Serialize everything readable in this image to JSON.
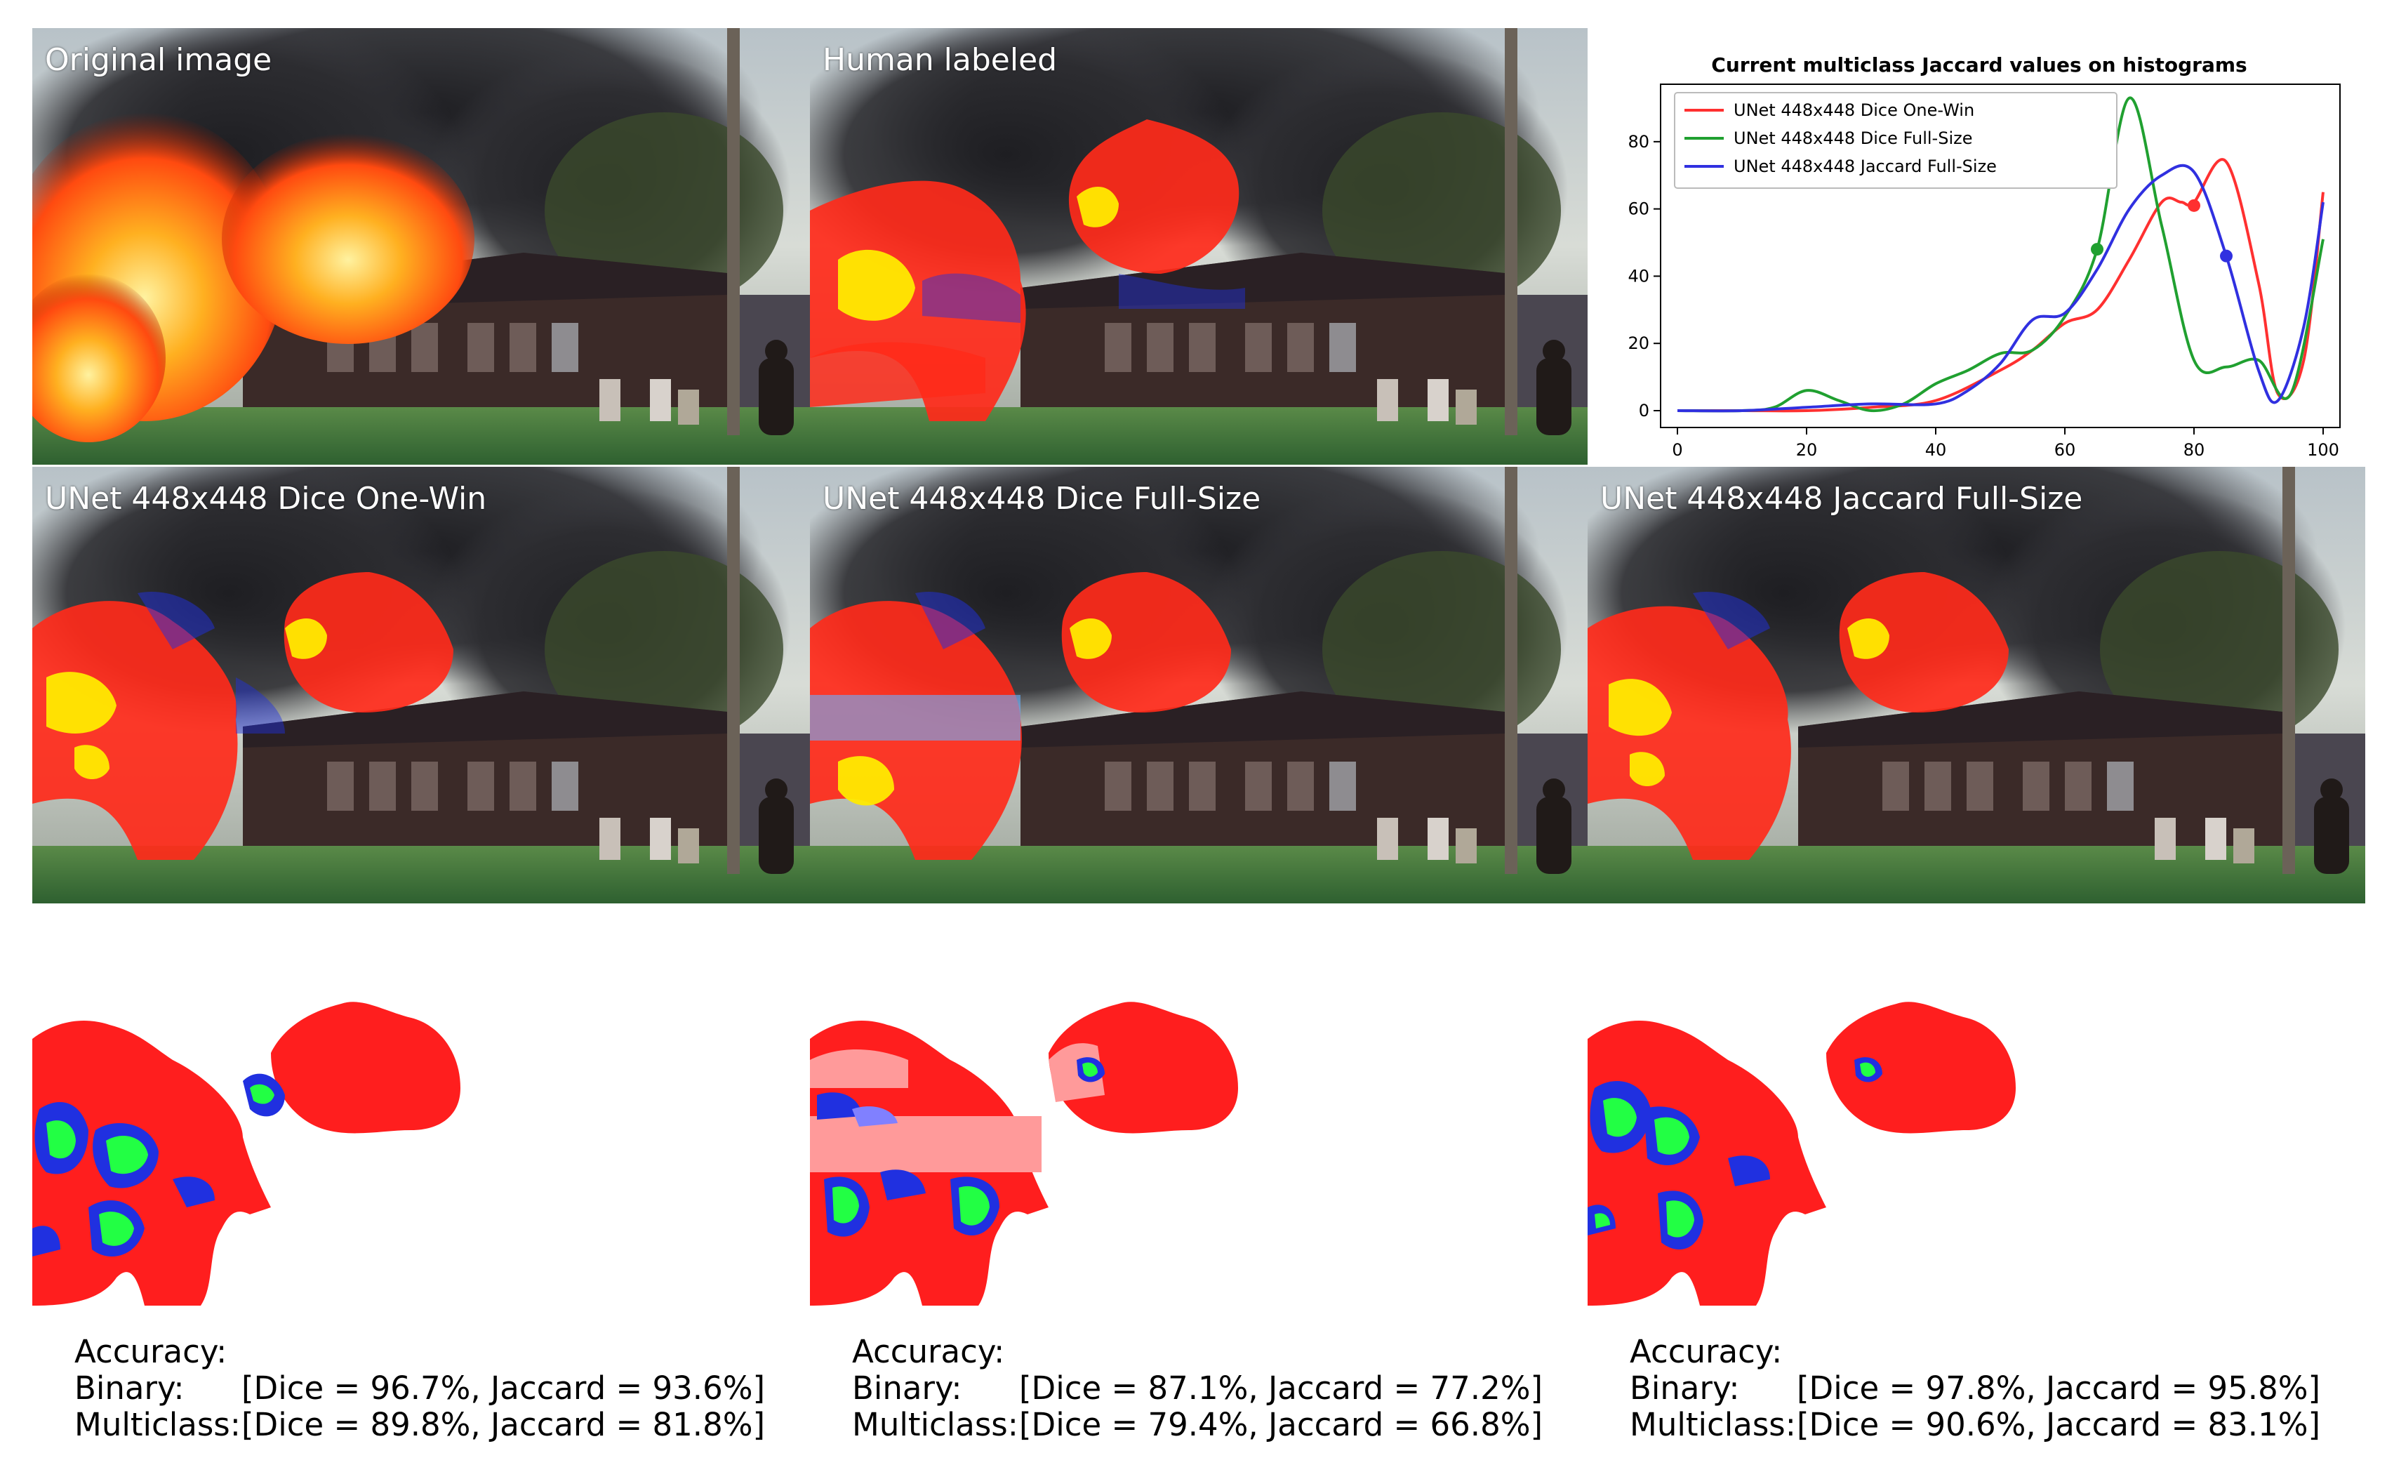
{
  "panels": [
    {
      "label": "Original image",
      "overlay": "none"
    },
    {
      "label": "Human labeled",
      "overlay": "human"
    },
    {
      "label": "UNet 448x448 Dice One-Win",
      "overlay": "onewin"
    },
    {
      "label": "UNet 448x448 Dice Full-Size",
      "overlay": "dicefull"
    },
    {
      "label": "UNet 448x448 Jaccard Full-Size",
      "overlay": "jaccardfull"
    }
  ],
  "results": [
    {
      "heading": "Accuracy:",
      "binary_key": "Binary:",
      "binary_val": "[Dice = 96.7%, Jaccard = 93.6%]",
      "multi_key": "Multiclass:",
      "multi_val": "[Dice = 89.8%, Jaccard = 81.8%]"
    },
    {
      "heading": "Accuracy:",
      "binary_key": "Binary:",
      "binary_val": "[Dice = 87.1%, Jaccard = 77.2%]",
      "multi_key": "Multiclass:",
      "multi_val": "[Dice = 79.4%, Jaccard = 66.8%]"
    },
    {
      "heading": "Accuracy:",
      "binary_key": "Binary:",
      "binary_val": "[Dice = 97.8%, Jaccard = 95.8%]",
      "multi_key": "Multiclass:",
      "multi_val": "[Dice = 90.6%, Jaccard = 83.1%]"
    }
  ],
  "colors": {
    "fire_red": "#ff2a1a",
    "fire_yellow": "#ffea00",
    "smoke_blue": "#2030e0",
    "mask_green": "#22ff44",
    "mask_pink": "#ff9a9a"
  },
  "chart_data": {
    "type": "line",
    "title": "Current multiclass Jaccard values on histograms",
    "xlabel": "",
    "ylabel": "",
    "xlim": [
      0,
      100
    ],
    "ylim": [
      0,
      95
    ],
    "xticks": [
      0,
      20,
      40,
      60,
      80,
      100
    ],
    "yticks": [
      0,
      20,
      40,
      60,
      80
    ],
    "legend": "top-left",
    "series": [
      {
        "name": "UNet 448x448 Dice One-Win",
        "color": "#ff3030",
        "x": [
          0,
          10,
          20,
          30,
          40,
          50,
          55,
          60,
          65,
          70,
          75,
          78,
          80,
          85,
          90,
          93,
          97,
          100
        ],
        "y": [
          0,
          0,
          0,
          1,
          3,
          12,
          18,
          26,
          30,
          45,
          62,
          62,
          62,
          74,
          38,
          5,
          15,
          65
        ],
        "marker": {
          "x": 80,
          "y": 61
        }
      },
      {
        "name": "UNet 448x448 Dice Full-Size",
        "color": "#20a030",
        "x": [
          0,
          10,
          15,
          20,
          25,
          30,
          35,
          40,
          45,
          50,
          55,
          60,
          65,
          70,
          75,
          80,
          85,
          90,
          95,
          100
        ],
        "y": [
          0,
          0,
          1,
          6,
          3,
          0,
          2,
          8,
          12,
          17,
          18,
          28,
          48,
          93,
          55,
          15,
          13,
          15,
          5,
          51
        ],
        "marker": {
          "x": 65,
          "y": 48
        }
      },
      {
        "name": "UNet 448x448 Jaccard Full-Size",
        "color": "#3030e0",
        "x": [
          0,
          10,
          20,
          30,
          40,
          45,
          50,
          55,
          60,
          65,
          70,
          75,
          80,
          85,
          90,
          93,
          97,
          100
        ],
        "y": [
          0,
          0,
          1,
          2,
          2,
          6,
          14,
          27,
          29,
          42,
          60,
          70,
          71,
          46,
          12,
          3,
          25,
          62
        ],
        "marker": {
          "x": 85,
          "y": 46
        }
      }
    ]
  }
}
